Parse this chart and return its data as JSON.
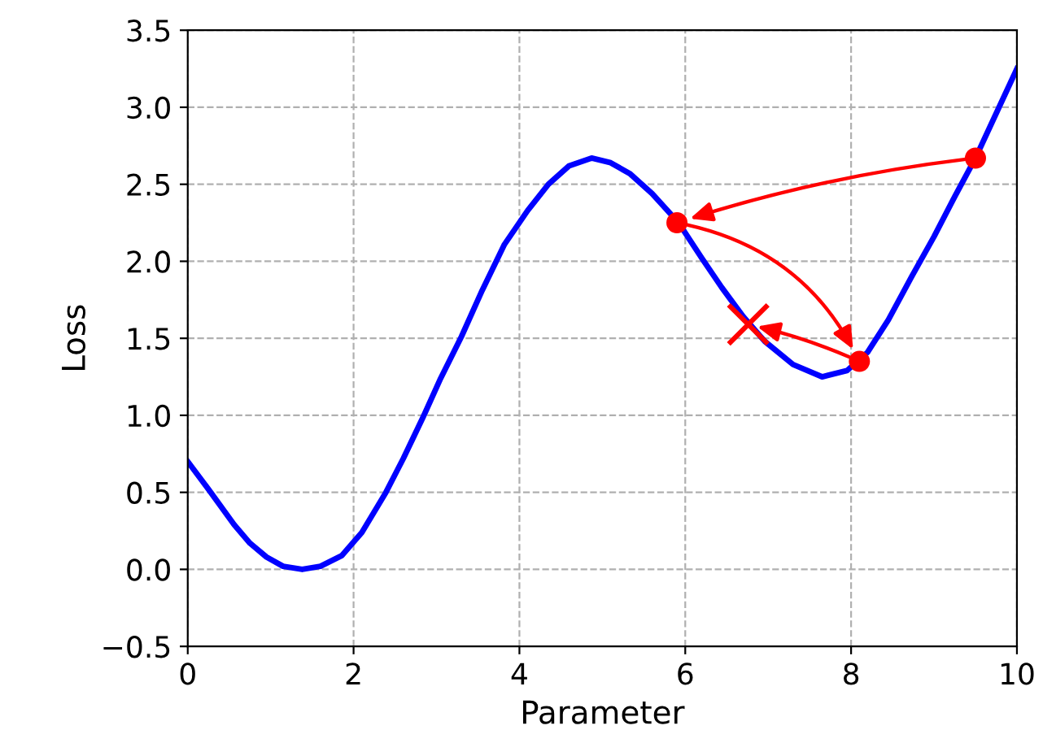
{
  "chart_data": {
    "type": "line",
    "xlabel": "Parameter",
    "ylabel": "Loss",
    "xlim": [
      0,
      10
    ],
    "ylim": [
      -0.5,
      3.5
    ],
    "xticks": [
      0,
      2,
      4,
      6,
      8,
      10
    ],
    "yticks": [
      {
        "value": -0.5,
        "label": "−0.5"
      },
      {
        "value": 0,
        "label": "0.0"
      },
      0.5,
      {
        "value": 1,
        "label": "1.0"
      },
      1.5,
      {
        "value": 2,
        "label": "2.0"
      },
      2.5,
      {
        "value": 3,
        "label": "3.0"
      },
      3.5
    ],
    "grid": true,
    "legend": false,
    "series": [
      {
        "color": "#0000ff",
        "marker": "none",
        "x": [
          0,
          0.25,
          0.56,
          0.75,
          0.95,
          1.15,
          1.38,
          1.6,
          1.86,
          2.1,
          2.39,
          2.6,
          2.84,
          3.05,
          3.3,
          3.55,
          3.82,
          4.1,
          4.35,
          4.6,
          4.87,
          5.1,
          5.33,
          5.6,
          5.92,
          6.2,
          6.44,
          6.7,
          6.96,
          7.3,
          7.65,
          7.95,
          8.2,
          8.45,
          8.73,
          9.0,
          9.25,
          9.5,
          9.75,
          10
        ],
        "values": [
          0.7,
          0.52,
          0.29,
          0.17,
          0.08,
          0.02,
          0.0,
          0.02,
          0.09,
          0.24,
          0.5,
          0.72,
          0.99,
          1.24,
          1.51,
          1.81,
          2.11,
          2.33,
          2.5,
          2.62,
          2.67,
          2.64,
          2.57,
          2.44,
          2.25,
          2.02,
          1.83,
          1.64,
          1.48,
          1.33,
          1.25,
          1.29,
          1.41,
          1.62,
          1.9,
          2.16,
          2.42,
          2.67,
          2.96,
          3.25
        ]
      },
      {
        "type": "scatter",
        "color": "#ff0000",
        "marker": "circle",
        "x": [
          9.5,
          5.9,
          8.1
        ],
        "values": [
          2.67,
          2.25,
          1.35
        ]
      },
      {
        "type": "scatter",
        "color": "#ff0000",
        "marker": "cross",
        "x": [
          6.76
        ],
        "values": [
          1.59
        ]
      }
    ]
  }
}
